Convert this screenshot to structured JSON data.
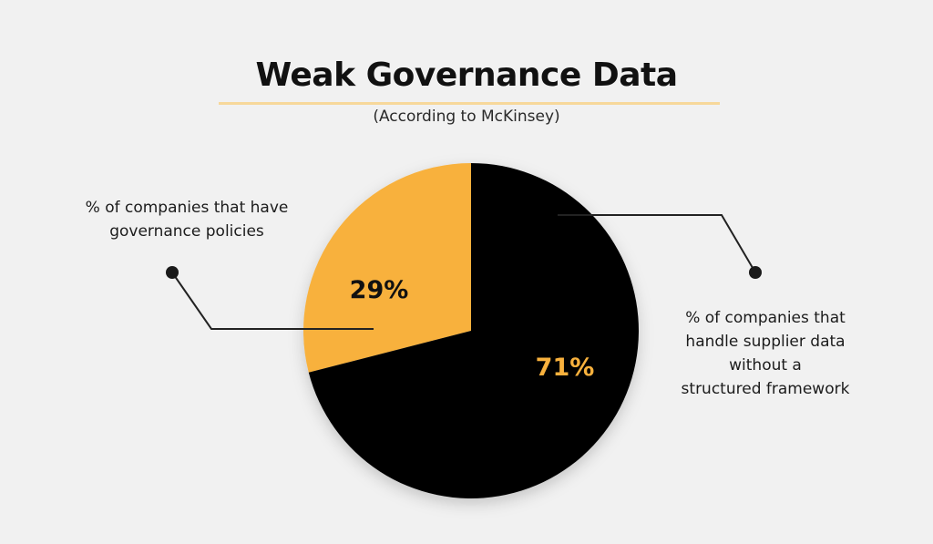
{
  "title": "Weak Governance Data",
  "subtitle": "(According to McKinsey)",
  "colors": {
    "background": "#f1f1f1",
    "accent": "#f8b13d",
    "dark": "#000000",
    "underline": "#f7d89a"
  },
  "chart_data": {
    "type": "pie",
    "title": "Weak Governance Data",
    "subtitle": "(According to McKinsey)",
    "slices": [
      {
        "label": "% of companies that have governance policies",
        "label_lines": [
          "% of companies that have",
          "governance policies"
        ],
        "value": 29,
        "value_label": "29%",
        "color": "#f8b13d",
        "value_label_color": "#111111"
      },
      {
        "label": "% of companies that handle supplier data without a structured framework",
        "label_lines": [
          "% of companies that",
          "handle supplier data",
          "without a",
          "structured framework"
        ],
        "value": 71,
        "value_label": "71%",
        "color": "#000000",
        "value_label_color": "#f8b13d"
      }
    ],
    "start": "top, slices counter-clockwise from 12 o'clock for the first slice"
  }
}
